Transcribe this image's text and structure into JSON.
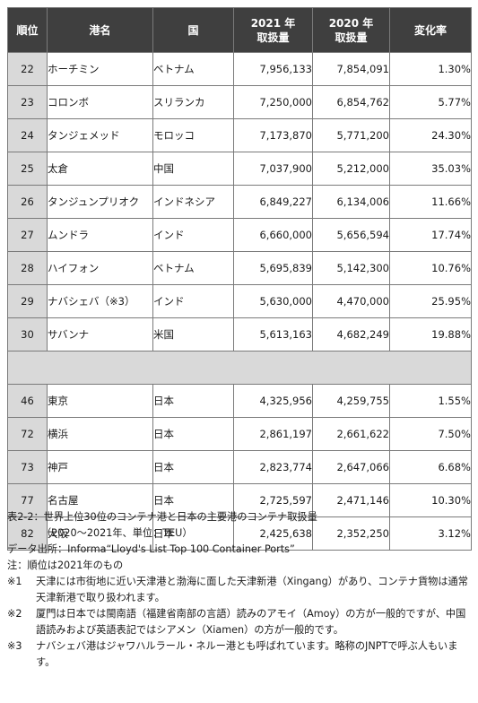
{
  "table": {
    "headers": [
      "順位",
      "港名",
      "国",
      "2021 年\n取扱量",
      "2020 年\n取扱量",
      "変化率"
    ],
    "top_rows": [
      {
        "rank": "22",
        "port": "ホーチミン",
        "country": "ベトナム",
        "v2021": "7,956,133",
        "v2020": "7,854,091",
        "change": "1.30%"
      },
      {
        "rank": "23",
        "port": "コロンボ",
        "country": "スリランカ",
        "v2021": "7,250,000",
        "v2020": "6,854,762",
        "change": "5.77%"
      },
      {
        "rank": "24",
        "port": "タンジェメッド",
        "country": "モロッコ",
        "v2021": "7,173,870",
        "v2020": "5,771,200",
        "change": "24.30%"
      },
      {
        "rank": "25",
        "port": "太倉",
        "country": "中国",
        "v2021": "7,037,900",
        "v2020": "5,212,000",
        "change": "35.03%"
      },
      {
        "rank": "26",
        "port": "タンジュンプリオク",
        "country": "インドネシア",
        "v2021": "6,849,227",
        "v2020": "6,134,006",
        "change": "11.66%"
      },
      {
        "rank": "27",
        "port": "ムンドラ",
        "country": "インド",
        "v2021": "6,660,000",
        "v2020": "5,656,594",
        "change": "17.74%"
      },
      {
        "rank": "28",
        "port": "ハイフォン",
        "country": "ベトナム",
        "v2021": "5,695,839",
        "v2020": "5,142,300",
        "change": "10.76%"
      },
      {
        "rank": "29",
        "port": "ナバシェバ（※3）",
        "country": "インド",
        "v2021": "5,630,000",
        "v2020": "4,470,000",
        "change": "25.95%"
      },
      {
        "rank": "30",
        "port": "サバンナ",
        "country": "米国",
        "v2021": "5,613,163",
        "v2020": "4,682,249",
        "change": "19.88%"
      }
    ],
    "japan_rows": [
      {
        "rank": "46",
        "port": "東京",
        "country": "日本",
        "v2021": "4,325,956",
        "v2020": "4,259,755",
        "change": "1.55%"
      },
      {
        "rank": "72",
        "port": "横浜",
        "country": "日本",
        "v2021": "2,861,197",
        "v2020": "2,661,622",
        "change": "7.50%"
      },
      {
        "rank": "73",
        "port": "神戸",
        "country": "日本",
        "v2021": "2,823,774",
        "v2020": "2,647,066",
        "change": "6.68%"
      },
      {
        "rank": "77",
        "port": "名古屋",
        "country": "日本",
        "v2021": "2,725,597",
        "v2020": "2,471,146",
        "change": "10.30%"
      },
      {
        "rank": "82",
        "port": "大阪",
        "country": "日本",
        "v2021": "2,425,638",
        "v2020": "2,352,250",
        "change": "3.12%"
      }
    ]
  },
  "caption": {
    "title_line1": "表2-2：世界上位30位のコンテナ港と日本の主要港のコンテナ取扱量",
    "title_line2": "（2020～2021年、単位：TEU）",
    "source": "データ出所：Informa“Lloyd's List Top 100 Container Ports”",
    "note_rank": "注：順位は2021年のもの",
    "notes": [
      {
        "mark": "※1",
        "text": "天津には市街地に近い天津港と渤海に面した天津新港（Xingang）があり、コンテナ貨物は通常天津新港で取り扱われます。"
      },
      {
        "mark": "※2",
        "text": "厦門は日本では閩南語（福建省南部の言語）読みのアモイ（Amoy）の方が一般的ですが、中国語読みおよび英語表記ではシアメン（Xiamen）の方が一般的です。"
      },
      {
        "mark": "※3",
        "text": "ナバシェバ港はジャワハルラール・ネルー港とも呼ばれています。略称のJNPTで呼ぶ人もいます。"
      }
    ]
  }
}
